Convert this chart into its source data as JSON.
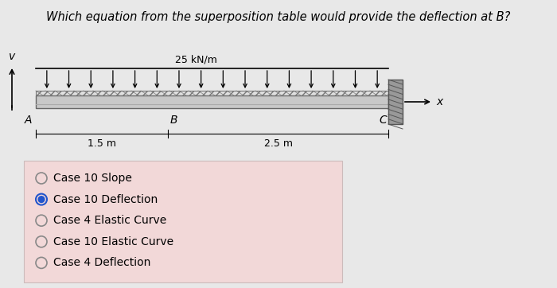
{
  "title": "Which equation from the superposition table would provide the deflection at B?",
  "title_fontsize": 10.5,
  "bg_color": "#e8e8e8",
  "options_bg_color": "#f2d8d8",
  "options": [
    "Case 10 Slope",
    "Case 10 Deflection",
    "Case 4 Elastic Curve",
    "Case 10 Elastic Curve",
    "Case 4 Deflection"
  ],
  "selected_option": 1,
  "beam_label_A": "A",
  "beam_label_B": "B",
  "beam_label_C": "C",
  "dim_AB": "1.5 m",
  "dim_BC": "2.5 m",
  "load_label": "25 kN/m",
  "axis_x": "x",
  "axis_y": "v",
  "beam_color": "#c8c8c8",
  "beam_edge_color": "#888888",
  "wall_color": "#999999"
}
